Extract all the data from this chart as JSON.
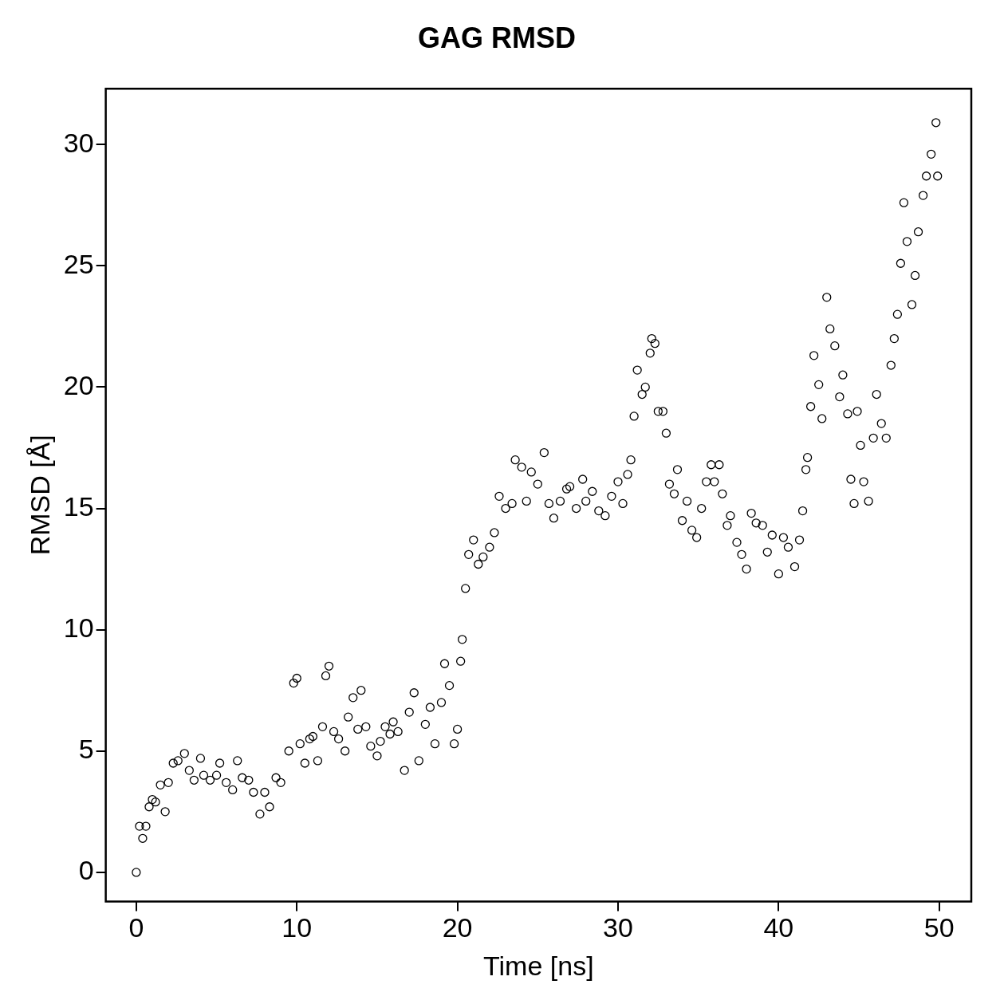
{
  "chart_data": {
    "type": "scatter",
    "title": "GAG RMSD",
    "xlabel": "Time [ns]",
    "ylabel": "RMSD [Å]",
    "marker": "circle",
    "grid": false,
    "legend": false,
    "xlim": [
      -1.9,
      52
    ],
    "xticks": [
      0,
      10,
      20,
      30,
      40,
      50
    ],
    "ylim": [
      -1.2,
      32.3
    ],
    "yticks": [
      0,
      5,
      10,
      15,
      20,
      25,
      30
    ],
    "series": [
      {
        "color": "#000000",
        "x": [
          0,
          0.2,
          0.4,
          0.6,
          0.8,
          1,
          1.2,
          1.5,
          1.8,
          2,
          2.3,
          2.6,
          3,
          3.3,
          3.6,
          4,
          4.2,
          4.6,
          5,
          5.2,
          5.6,
          6,
          6.3,
          6.6,
          7,
          7.3,
          7.7,
          8,
          8.3,
          8.7,
          9,
          9.5,
          9.8,
          10,
          10.2,
          10.5,
          10.8,
          11,
          11.3,
          11.6,
          11.8,
          12,
          12.3,
          12.6,
          13,
          13.2,
          13.5,
          13.8,
          14,
          14.3,
          14.6,
          15,
          15.2,
          15.5,
          15.8,
          16,
          16.3,
          16.7,
          17,
          17.3,
          17.6,
          18,
          18.3,
          18.6,
          19,
          19.2,
          19.5,
          19.8,
          20,
          20.2,
          20.3,
          20.5,
          20.7,
          21,
          21.3,
          21.6,
          22,
          22.3,
          22.6,
          23,
          23.4,
          23.6,
          24,
          24.3,
          24.6,
          25,
          25.4,
          25.7,
          26,
          26.4,
          26.8,
          27,
          27.4,
          27.8,
          28,
          28.4,
          28.8,
          29.2,
          29.6,
          30,
          30.3,
          30.6,
          30.8,
          31,
          31.2,
          31.5,
          31.7,
          32,
          32.1,
          32.3,
          32.5,
          32.8,
          33,
          33.2,
          33.5,
          33.7,
          34,
          34.3,
          34.6,
          34.9,
          35.2,
          35.5,
          35.8,
          36,
          36.3,
          36.5,
          36.8,
          37,
          37.4,
          37.7,
          38,
          38.3,
          38.6,
          39,
          39.3,
          39.6,
          40,
          40.3,
          40.6,
          41,
          41.3,
          41.5,
          41.7,
          41.8,
          42,
          42.2,
          42.5,
          42.7,
          43,
          43.2,
          43.5,
          43.8,
          44,
          44.3,
          44.5,
          44.7,
          44.9,
          45.1,
          45.3,
          45.6,
          45.9,
          46.1,
          46.4,
          46.7,
          47,
          47.2,
          47.4,
          47.6,
          47.8,
          48,
          48.3,
          48.5,
          48.7,
          49,
          49.2,
          49.5,
          49.8,
          49.9
        ],
        "values": [
          0,
          1.9,
          1.4,
          1.9,
          2.7,
          3.0,
          2.9,
          3.6,
          2.5,
          3.7,
          4.5,
          4.6,
          4.9,
          4.2,
          3.8,
          4.7,
          4.0,
          3.8,
          4.0,
          4.5,
          3.7,
          3.4,
          4.6,
          3.9,
          3.8,
          3.3,
          2.4,
          3.3,
          2.7,
          3.9,
          3.7,
          5.0,
          7.8,
          8.0,
          5.3,
          4.5,
          5.5,
          5.6,
          4.6,
          6.0,
          8.1,
          8.5,
          5.8,
          5.5,
          5.0,
          6.4,
          7.2,
          5.9,
          7.5,
          6.0,
          5.2,
          4.8,
          5.4,
          6.0,
          5.7,
          6.2,
          5.8,
          4.2,
          6.6,
          7.4,
          4.6,
          6.1,
          6.8,
          5.3,
          7.0,
          8.6,
          7.7,
          5.3,
          5.9,
          8.7,
          9.6,
          11.7,
          13.1,
          13.7,
          12.7,
          13.0,
          13.4,
          14.0,
          15.5,
          15.0,
          15.2,
          17.0,
          16.7,
          15.3,
          16.5,
          16.0,
          17.3,
          15.2,
          14.6,
          15.3,
          15.8,
          15.9,
          15.0,
          16.2,
          15.3,
          15.7,
          14.9,
          14.7,
          15.5,
          16.1,
          15.2,
          16.4,
          17.0,
          18.8,
          20.7,
          19.7,
          20.0,
          21.4,
          22.0,
          21.8,
          19.0,
          19.0,
          18.1,
          16.0,
          15.6,
          16.6,
          14.5,
          15.3,
          14.1,
          13.8,
          15.0,
          16.1,
          16.8,
          16.1,
          16.8,
          15.6,
          14.3,
          14.7,
          13.6,
          13.1,
          12.5,
          14.8,
          14.4,
          14.3,
          13.2,
          13.9,
          12.3,
          13.8,
          13.4,
          12.6,
          13.7,
          14.9,
          16.6,
          17.1,
          19.2,
          21.3,
          20.1,
          18.7,
          23.7,
          22.4,
          21.7,
          19.6,
          20.5,
          18.9,
          16.2,
          15.2,
          19.0,
          17.6,
          16.1,
          15.3,
          17.9,
          19.7,
          18.5,
          17.9,
          20.9,
          22.0,
          23.0,
          25.1,
          27.6,
          26.0,
          23.4,
          24.6,
          26.4,
          27.9,
          28.7,
          29.6,
          30.9,
          28.7
        ]
      }
    ]
  }
}
